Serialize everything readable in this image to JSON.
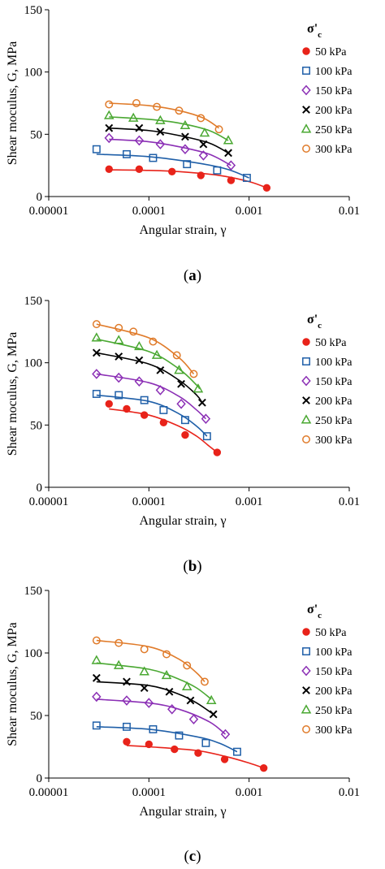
{
  "chart_data": [
    {
      "type": "scatter",
      "panel_label": "(a)",
      "xlabel": "Angular strain, γ",
      "ylabel": "Shear moculus, G, MPa",
      "xscale": "log",
      "xlim": [
        1e-05,
        0.01
      ],
      "ylim": [
        0,
        150
      ],
      "xticks": [
        1e-05,
        0.0001,
        0.001,
        0.01
      ],
      "xtick_labels": [
        "0.00001",
        "0.0001",
        "0.001",
        "0.01"
      ],
      "yticks": [
        0,
        50,
        100,
        150
      ],
      "ytick_labels": [
        "0",
        "50",
        "100",
        "150"
      ],
      "grid": false,
      "legend_title": "σ'c",
      "legend_position": "right",
      "series": [
        {
          "name": "50 kPa",
          "marker": "filled-circle",
          "color": "#e8231a",
          "x": [
            4e-05,
            8e-05,
            0.00017,
            0.00033,
            0.00066,
            0.0015
          ],
          "y": [
            22,
            22,
            20,
            17,
            13,
            7
          ],
          "fit_x": [
            4e-05,
            0.0001,
            0.0002,
            0.0005,
            0.001,
            0.0015
          ],
          "fit_y": [
            21.5,
            21,
            20,
            17,
            12,
            7
          ]
        },
        {
          "name": "100 kPa",
          "marker": "square",
          "color": "#1f5fa8",
          "x": [
            3e-05,
            6e-05,
            0.00011,
            0.00024,
            0.00048,
            0.00095
          ],
          "y": [
            38,
            34,
            31,
            26,
            21,
            15
          ],
          "fit_x": [
            3e-05,
            0.0001,
            0.0003,
            0.0006,
            0.001
          ],
          "fit_y": [
            34,
            32,
            27,
            22,
            15
          ]
        },
        {
          "name": "150 kPa",
          "marker": "diamond",
          "color": "#8b2fb5",
          "x": [
            4e-05,
            8e-05,
            0.00013,
            0.00023,
            0.00035,
            0.00066
          ],
          "y": [
            47,
            45,
            42,
            38,
            33,
            25
          ],
          "fit_x": [
            4e-05,
            0.0001,
            0.0002,
            0.0004,
            0.00066
          ],
          "fit_y": [
            46,
            44,
            40,
            34,
            25
          ]
        },
        {
          "name": "200 kPa",
          "marker": "cross",
          "color": "#000000",
          "x": [
            4e-05,
            8e-05,
            0.00013,
            0.00023,
            0.00035,
            0.00062
          ],
          "y": [
            55,
            55,
            52,
            48,
            42,
            35
          ],
          "fit_x": [
            4e-05,
            0.0001,
            0.0002,
            0.0004,
            0.00062
          ],
          "fit_y": [
            55,
            53,
            49,
            43,
            35
          ]
        },
        {
          "name": "250 kPa",
          "marker": "triangle",
          "color": "#4aa832",
          "x": [
            4e-05,
            7e-05,
            0.00013,
            0.00023,
            0.00036,
            0.00062
          ],
          "y": [
            65,
            63,
            61,
            57,
            51,
            45
          ],
          "fit_x": [
            4e-05,
            0.0001,
            0.0002,
            0.0004,
            0.00062
          ],
          "fit_y": [
            64,
            62,
            59,
            53,
            45
          ]
        },
        {
          "name": "300 kPa",
          "marker": "open-circle",
          "color": "#e07b2a",
          "x": [
            4e-05,
            7.5e-05,
            0.00012,
            0.0002,
            0.00033,
            0.0005
          ],
          "y": [
            74,
            75,
            72,
            69,
            63,
            54
          ],
          "fit_x": [
            4e-05,
            0.0001,
            0.0002,
            0.00035,
            0.0005
          ],
          "fit_y": [
            75,
            73,
            69,
            63,
            55
          ]
        }
      ]
    },
    {
      "type": "scatter",
      "panel_label": "(b)",
      "xlabel": "Angular strain, γ",
      "ylabel": "Shear moculus, G, MPa",
      "xscale": "log",
      "xlim": [
        1e-05,
        0.01
      ],
      "ylim": [
        0,
        150
      ],
      "xticks": [
        1e-05,
        0.0001,
        0.001,
        0.01
      ],
      "xtick_labels": [
        "0.00001",
        "0.0001",
        "0.001",
        "0.01"
      ],
      "yticks": [
        0,
        50,
        100,
        150
      ],
      "ytick_labels": [
        "0",
        "50",
        "100",
        "150"
      ],
      "grid": false,
      "legend_title": "σ'c",
      "legend_position": "right",
      "series": [
        {
          "name": "50 kPa",
          "marker": "filled-circle",
          "color": "#e8231a",
          "x": [
            4e-05,
            6e-05,
            9e-05,
            0.00014,
            0.00023,
            0.00048
          ],
          "y": [
            67,
            63,
            58,
            52,
            42,
            28
          ],
          "fit_x": [
            4e-05,
            0.0001,
            0.0002,
            0.0003,
            0.0004,
            0.00048
          ],
          "fit_y": [
            63,
            58,
            49,
            41,
            33,
            28
          ]
        },
        {
          "name": "100 kPa",
          "marker": "square",
          "color": "#1f5fa8",
          "x": [
            3e-05,
            5e-05,
            9e-05,
            0.00014,
            0.00023,
            0.00038
          ],
          "y": [
            75,
            74,
            70,
            62,
            54,
            41
          ],
          "fit_x": [
            3e-05,
            0.0001,
            0.0002,
            0.0003,
            0.00038
          ],
          "fit_y": [
            74,
            69,
            59,
            49,
            41
          ]
        },
        {
          "name": "150 kPa",
          "marker": "diamond",
          "color": "#8b2fb5",
          "x": [
            3e-05,
            5e-05,
            8e-05,
            0.00013,
            0.00021,
            0.00037
          ],
          "y": [
            91,
            88,
            85,
            78,
            67,
            55
          ],
          "fit_x": [
            3e-05,
            0.0001,
            0.0002,
            0.0003,
            0.00037
          ],
          "fit_y": [
            91,
            84,
            73,
            62,
            55
          ]
        },
        {
          "name": "200 kPa",
          "marker": "cross",
          "color": "#000000",
          "x": [
            3e-05,
            5e-05,
            8e-05,
            0.00013,
            0.00021,
            0.00034
          ],
          "y": [
            108,
            105,
            102,
            94,
            83,
            68
          ],
          "fit_x": [
            3e-05,
            0.0001,
            0.0002,
            0.0003,
            0.00034
          ],
          "fit_y": [
            108,
            99,
            86,
            74,
            68
          ]
        },
        {
          "name": "250 kPa",
          "marker": "triangle",
          "color": "#4aa832",
          "x": [
            3e-05,
            5e-05,
            8e-05,
            0.00012,
            0.0002,
            0.00031
          ],
          "y": [
            120,
            118,
            113,
            106,
            94,
            79
          ],
          "fit_x": [
            3e-05,
            0.0001,
            0.0002,
            0.0003,
            0.00032
          ],
          "fit_y": [
            119,
            109,
            95,
            82,
            79
          ]
        },
        {
          "name": "300 kPa",
          "marker": "open-circle",
          "color": "#e07b2a",
          "x": [
            3e-05,
            5e-05,
            7e-05,
            0.00011,
            0.00019,
            0.00028
          ],
          "y": [
            131,
            128,
            125,
            117,
            106,
            91
          ],
          "fit_x": [
            3e-05,
            0.0001,
            0.0002,
            0.00028
          ],
          "fit_y": [
            131,
            120,
            104,
            91
          ]
        }
      ]
    },
    {
      "type": "scatter",
      "panel_label": "(c)",
      "xlabel": "Angular strain, γ",
      "ylabel": "Shear moculus, G, MPa",
      "xscale": "log",
      "xlim": [
        1e-05,
        0.01
      ],
      "ylim": [
        0,
        150
      ],
      "xticks": [
        1e-05,
        0.0001,
        0.001,
        0.01
      ],
      "xtick_labels": [
        "0.00001",
        "0.0001",
        "0.001",
        "0.01"
      ],
      "yticks": [
        0,
        50,
        100,
        150
      ],
      "ytick_labels": [
        "0",
        "50",
        "100",
        "150"
      ],
      "grid": false,
      "legend_title": "σ'c",
      "legend_position": "right",
      "series": [
        {
          "name": "50 kPa",
          "marker": "filled-circle",
          "color": "#e8231a",
          "x": [
            6e-05,
            0.0001,
            0.00018,
            0.00031,
            0.00057,
            0.0014
          ],
          "y": [
            29,
            27,
            23,
            20,
            15,
            8
          ],
          "fit_x": [
            6e-05,
            0.0001,
            0.0003,
            0.0006,
            0.001,
            0.0014
          ],
          "fit_y": [
            26,
            25,
            22,
            17,
            12,
            8
          ]
        },
        {
          "name": "100 kPa",
          "marker": "square",
          "color": "#1f5fa8",
          "x": [
            3e-05,
            6e-05,
            0.00011,
            0.0002,
            0.00037,
            0.00076
          ],
          "y": [
            42,
            41,
            39,
            34,
            28,
            21
          ],
          "fit_x": [
            3e-05,
            0.0001,
            0.0003,
            0.0005,
            0.00076
          ],
          "fit_y": [
            41,
            39,
            33,
            28,
            21
          ]
        },
        {
          "name": "150 kPa",
          "marker": "diamond",
          "color": "#8b2fb5",
          "x": [
            3e-05,
            6e-05,
            0.0001,
            0.00017,
            0.00028,
            0.00058
          ],
          "y": [
            65,
            62,
            60,
            55,
            47,
            35
          ],
          "fit_x": [
            3e-05,
            0.0001,
            0.0002,
            0.0004,
            0.00058
          ],
          "fit_y": [
            63,
            60,
            55,
            45,
            35
          ]
        },
        {
          "name": "200 kPa",
          "marker": "cross",
          "color": "#000000",
          "x": [
            3e-05,
            6e-05,
            9e-05,
            0.00016,
            0.00026,
            0.00044
          ],
          "y": [
            80,
            77,
            72,
            69,
            62,
            51
          ],
          "fit_x": [
            3e-05,
            0.0001,
            0.0002,
            0.0003,
            0.00044
          ],
          "fit_y": [
            77,
            74,
            67,
            60,
            51
          ]
        },
        {
          "name": "250 kPa",
          "marker": "triangle",
          "color": "#4aa832",
          "x": [
            3e-05,
            5e-05,
            9e-05,
            0.00015,
            0.00024,
            0.00042
          ],
          "y": [
            94,
            90,
            85,
            82,
            73,
            62
          ],
          "fit_x": [
            3e-05,
            0.0001,
            0.0002,
            0.0003,
            0.00042
          ],
          "fit_y": [
            92,
            87,
            79,
            72,
            63
          ]
        },
        {
          "name": "300 kPa",
          "marker": "open-circle",
          "color": "#e07b2a",
          "x": [
            3e-05,
            5e-05,
            9e-05,
            0.00015,
            0.00024,
            0.00036
          ],
          "y": [
            110,
            108,
            103,
            99,
            90,
            77
          ],
          "fit_x": [
            3e-05,
            0.0001,
            0.0002,
            0.0003,
            0.00036
          ],
          "fit_y": [
            110,
            105,
            95,
            84,
            77
          ]
        }
      ]
    }
  ]
}
